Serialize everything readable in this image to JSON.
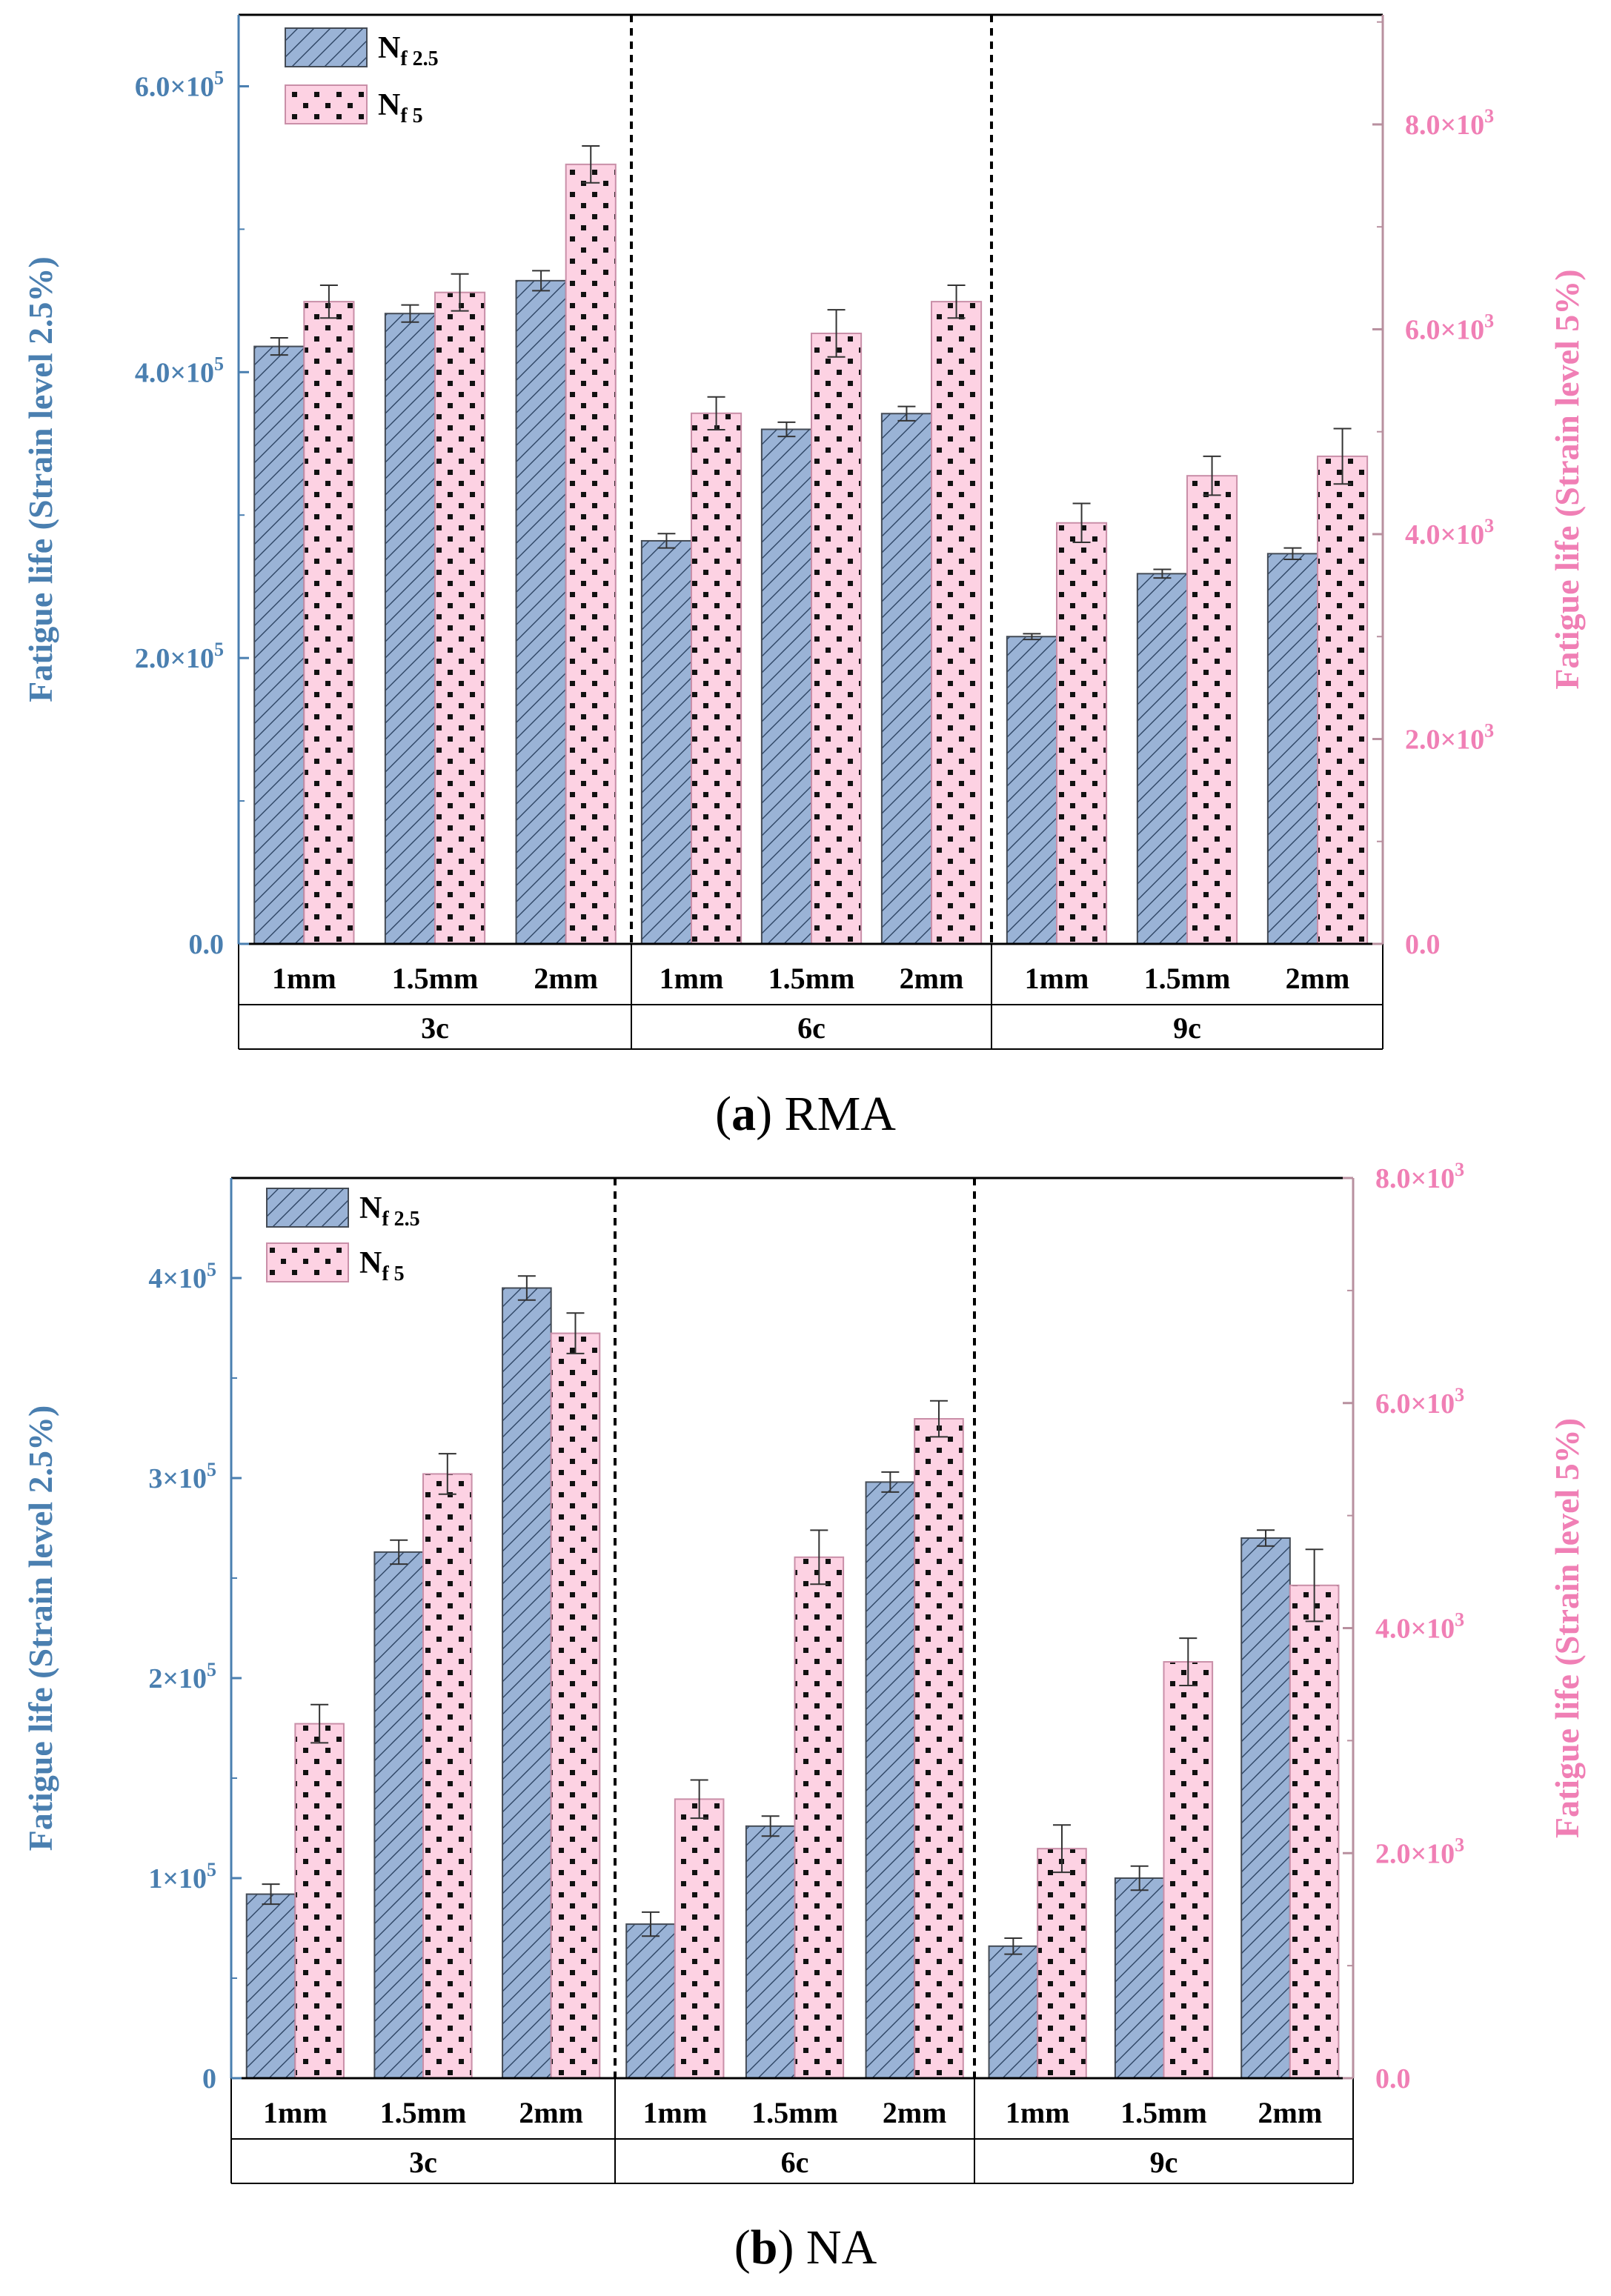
{
  "colors": {
    "blue_fill": "#9ab3d6",
    "blue_axis": "#4a7fb0",
    "pink_fill": "#fdd2e3",
    "pink_axis": "#f07fb5",
    "pink_axis_line": "#b8909f"
  },
  "chart_data": [
    {
      "type": "bar",
      "panel_letter": "a",
      "panel_name": "RMA",
      "groups": [
        "3c",
        "6c",
        "9c"
      ],
      "subcategories": [
        "1mm",
        "1.5mm",
        "2mm"
      ],
      "legend": {
        "position": "top-left",
        "entries": [
          {
            "base": "N",
            "sub": "f 2.5"
          },
          {
            "base": "N",
            "sub": "f 5"
          }
        ]
      },
      "left_axis": {
        "label": "Fatigue life (Strain level 2.5%)",
        "ylim": [
          0,
          650000
        ],
        "ticks": [
          {
            "value": 0,
            "m": "0.0",
            "e": ""
          },
          {
            "value": 200000,
            "m": "2.0×10",
            "e": "5"
          },
          {
            "value": 400000,
            "m": "4.0×10",
            "e": "5"
          },
          {
            "value": 600000,
            "m": "6.0×10",
            "e": "5"
          }
        ]
      },
      "right_axis": {
        "label": "Fatigue life (Strain level 5%)",
        "ylim": [
          0,
          9070
        ],
        "ticks": [
          {
            "value": 0,
            "m": "0.0",
            "e": ""
          },
          {
            "value": 2000,
            "m": "2.0×10",
            "e": "3"
          },
          {
            "value": 4000,
            "m": "4.0×10",
            "e": "3"
          },
          {
            "value": 6000,
            "m": "6.0×10",
            "e": "3"
          },
          {
            "value": 8000,
            "m": "8.0×10",
            "e": "3"
          }
        ]
      },
      "series": [
        {
          "name": "Nf 2.5",
          "axis": "left",
          "values": [
            418000,
            441000,
            464000,
            282000,
            360000,
            371000,
            215000,
            259000,
            273000
          ],
          "errors": [
            6000,
            6000,
            7000,
            5000,
            5000,
            5000,
            2000,
            3000,
            4000
          ]
        },
        {
          "name": "Nf 5",
          "axis": "right",
          "values": [
            6270,
            6360,
            7610,
            5180,
            5960,
            6270,
            4110,
            4570,
            4760
          ],
          "errors": [
            160,
            180,
            180,
            160,
            230,
            160,
            190,
            190,
            270
          ]
        }
      ]
    },
    {
      "type": "bar",
      "panel_letter": "b",
      "panel_name": "NA",
      "groups": [
        "3c",
        "6c",
        "9c"
      ],
      "subcategories": [
        "1mm",
        "1.5mm",
        "2mm"
      ],
      "legend": {
        "position": "top-left",
        "entries": [
          {
            "base": "N",
            "sub": "f 2.5"
          },
          {
            "base": "N",
            "sub": "f 5"
          }
        ]
      },
      "left_axis": {
        "label": "Fatigue life (Strain level 2.5%)",
        "ylim": [
          0,
          450000
        ],
        "ticks": [
          {
            "value": 0,
            "m": "0",
            "e": ""
          },
          {
            "value": 100000,
            "m": "1×10",
            "e": "5"
          },
          {
            "value": 200000,
            "m": "2×10",
            "e": "5"
          },
          {
            "value": 300000,
            "m": "3×10",
            "e": "5"
          },
          {
            "value": 400000,
            "m": "4×10",
            "e": "5"
          }
        ]
      },
      "right_axis": {
        "label": "Fatigue life (Strain level 5%)",
        "ylim": [
          0,
          8000
        ],
        "ticks": [
          {
            "value": 0,
            "m": "0.0",
            "e": ""
          },
          {
            "value": 2000,
            "m": "2.0×10",
            "e": "3"
          },
          {
            "value": 4000,
            "m": "4.0×10",
            "e": "3"
          },
          {
            "value": 6000,
            "m": "6.0×10",
            "e": "3"
          },
          {
            "value": 8000,
            "m": "8.0×10",
            "e": "3"
          }
        ]
      },
      "series": [
        {
          "name": "Nf 2.5",
          "axis": "left",
          "values": [
            92000,
            263000,
            395000,
            77000,
            126000,
            298000,
            66000,
            100000,
            270000
          ],
          "errors": [
            5000,
            6000,
            6000,
            6000,
            5000,
            5000,
            4000,
            6000,
            4000
          ]
        },
        {
          "name": "Nf 5",
          "axis": "right",
          "values": [
            3150,
            5370,
            6620,
            2480,
            4630,
            5860,
            2040,
            3700,
            4380
          ],
          "errors": [
            170,
            180,
            180,
            170,
            240,
            160,
            210,
            210,
            320
          ]
        }
      ]
    }
  ]
}
